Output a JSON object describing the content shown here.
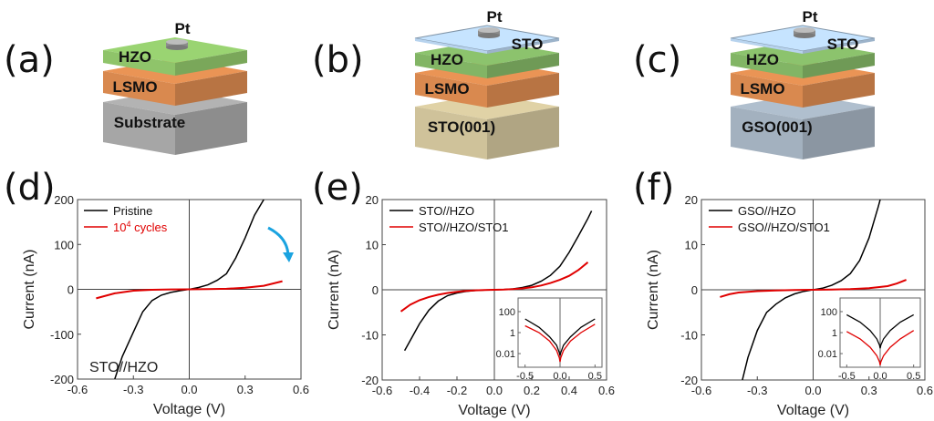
{
  "panels_top": [
    {
      "label": "(a)",
      "electrode": "Pt",
      "layers": [
        "HZO",
        "LSMO",
        "Substrate"
      ],
      "cap": null,
      "colors": {
        "cap": null,
        "hzo": "#8fc46a",
        "lsmo": "#d9894f",
        "substrate": "#a6a6a6"
      }
    },
    {
      "label": "(b)",
      "electrode": "Pt",
      "layers": [
        "HZO",
        "LSMO",
        "STO(001)"
      ],
      "cap": "STO",
      "colors": {
        "cap": "#b7d3ee",
        "hzo": "#82b565",
        "lsmo": "#d9894f",
        "substrate": "#cfc29a"
      }
    },
    {
      "label": "(c)",
      "electrode": "Pt",
      "layers": [
        "HZO",
        "LSMO",
        "GSO(001)"
      ],
      "cap": "STO",
      "colors": {
        "cap": "#b7d3ee",
        "hzo": "#82b565",
        "lsmo": "#d9894f",
        "substrate": "#a3b1bf"
      }
    }
  ],
  "chart_data": [
    {
      "panel": "(d)",
      "type": "line",
      "xlabel": "Voltage (V)",
      "ylabel": "Current (nA)",
      "xlim": [
        -0.6,
        0.6
      ],
      "ylim": [
        -200,
        200
      ],
      "xticks": [
        "-0.6",
        "-0.3",
        "0.0",
        "0.3",
        "0.6"
      ],
      "yticks": [
        "-200",
        "-100",
        "0",
        "100",
        "200"
      ],
      "legend": "top-left",
      "annotation": "STO//HZO",
      "arrow": {
        "color": "#1aa3e0",
        "meaning": "current decrease after cycling"
      },
      "series": [
        {
          "name": "Pristine",
          "color": "#000000",
          "x": [
            -0.4,
            -0.36,
            -0.3,
            -0.25,
            -0.2,
            -0.15,
            -0.1,
            -0.05,
            0.0,
            0.05,
            0.1,
            0.15,
            0.2,
            0.25,
            0.3,
            0.35,
            0.4
          ],
          "y": [
            -200,
            -150,
            -95,
            -50,
            -25,
            -13,
            -7,
            -3,
            0,
            4,
            10,
            20,
            35,
            70,
            115,
            165,
            200
          ]
        },
        {
          "name": "10^4 cycles",
          "name_display": "10",
          "name_sup": "4",
          "name_tail": " cycles",
          "color": "#e00000",
          "x": [
            -0.5,
            -0.4,
            -0.3,
            -0.2,
            -0.1,
            0.0,
            0.1,
            0.2,
            0.3,
            0.4,
            0.5
          ],
          "y": [
            -20,
            -9,
            -3,
            -1,
            -0.3,
            0,
            0.4,
            1.2,
            3.5,
            8,
            18
          ]
        }
      ]
    },
    {
      "panel": "(e)",
      "type": "line",
      "xlabel": "Voltage (V)",
      "ylabel": "Current (nA)",
      "xlim": [
        -0.6,
        0.6
      ],
      "ylim": [
        -20,
        20
      ],
      "xticks": [
        "-0.6",
        "-0.4",
        "-0.2",
        "0.0",
        "0.2",
        "0.4",
        "0.6"
      ],
      "yticks": [
        "-20",
        "-10",
        "0",
        "10",
        "20"
      ],
      "legend": "top-left",
      "series": [
        {
          "name": "STO//HZO",
          "color": "#000000",
          "x": [
            -0.48,
            -0.44,
            -0.4,
            -0.35,
            -0.3,
            -0.25,
            -0.2,
            -0.15,
            -0.1,
            -0.05,
            0.0,
            0.05,
            0.1,
            0.15,
            0.2,
            0.25,
            0.3,
            0.35,
            0.4,
            0.45,
            0.5,
            0.52
          ],
          "y": [
            -13.5,
            -10.5,
            -7.5,
            -4.5,
            -2.5,
            -1.3,
            -0.7,
            -0.35,
            -0.15,
            -0.05,
            0,
            0.05,
            0.2,
            0.5,
            1.0,
            1.9,
            3.2,
            5.2,
            8.3,
            12.0,
            15.8,
            17.5
          ]
        },
        {
          "name": "STO//HZO/STO1",
          "color": "#e00000",
          "x": [
            -0.5,
            -0.45,
            -0.4,
            -0.35,
            -0.3,
            -0.25,
            -0.2,
            -0.15,
            -0.1,
            -0.05,
            0.0,
            0.05,
            0.1,
            0.15,
            0.2,
            0.25,
            0.3,
            0.35,
            0.4,
            0.45,
            0.5
          ],
          "y": [
            -4.8,
            -3.3,
            -2.3,
            -1.6,
            -1.1,
            -0.7,
            -0.45,
            -0.25,
            -0.12,
            -0.05,
            0,
            0.05,
            0.15,
            0.3,
            0.55,
            0.95,
            1.5,
            2.2,
            3.1,
            4.4,
            6.1
          ]
        }
      ],
      "inset": {
        "type": "line",
        "yscale": "log",
        "xlim": [
          -0.6,
          0.6
        ],
        "ylim_log10": [
          -3.3,
          3.3
        ],
        "xticks": [
          "-0.5",
          "0.0",
          "0.5"
        ],
        "yticks": [
          "100",
          "1",
          "0.01"
        ],
        "series_abs_log10": [
          {
            "color": "#000000",
            "x": [
              -0.5,
              -0.3,
              -0.15,
              -0.05,
              -0.01,
              0.0,
              0.01,
              0.05,
              0.15,
              0.3,
              0.5
            ],
            "y": [
              1.3,
              0.5,
              -0.4,
              -1.2,
              -1.9,
              -2.2,
              -1.9,
              -1.2,
              -0.4,
              0.5,
              1.3
            ]
          },
          {
            "color": "#e00000",
            "x": [
              -0.5,
              -0.3,
              -0.15,
              -0.05,
              -0.01,
              0.0,
              0.01,
              0.05,
              0.15,
              0.3,
              0.5
            ],
            "y": [
              0.65,
              0.0,
              -0.8,
              -1.7,
              -2.4,
              -2.8,
              -2.4,
              -1.7,
              -0.8,
              0.0,
              0.8
            ]
          }
        ]
      }
    },
    {
      "panel": "(f)",
      "type": "line",
      "xlabel": "Voltage (V)",
      "ylabel": "Current (nA)",
      "xlim": [
        -0.6,
        0.6
      ],
      "ylim": [
        -20,
        20
      ],
      "xticks": [
        "-0.6",
        "-0.3",
        "0.0",
        "0.3",
        "0.6"
      ],
      "yticks": [
        "-20",
        "-10",
        "0",
        "10",
        "20"
      ],
      "legend": "top-left",
      "series": [
        {
          "name": "GSO//HZO",
          "color": "#000000",
          "x": [
            -0.38,
            -0.35,
            -0.3,
            -0.25,
            -0.2,
            -0.15,
            -0.1,
            -0.05,
            0.0,
            0.05,
            0.1,
            0.15,
            0.2,
            0.25,
            0.3,
            0.35,
            0.36
          ],
          "y": [
            -20,
            -15,
            -9,
            -5,
            -3.2,
            -1.8,
            -0.9,
            -0.35,
            0,
            0.35,
            1.0,
            2.0,
            3.6,
            6.5,
            11.5,
            18.5,
            20
          ]
        },
        {
          "name": "GSO//HZO/STO1",
          "color": "#e00000",
          "x": [
            -0.5,
            -0.45,
            -0.4,
            -0.3,
            -0.2,
            -0.1,
            0.0,
            0.1,
            0.2,
            0.3,
            0.4,
            0.45,
            0.5
          ],
          "y": [
            -1.6,
            -1.0,
            -0.6,
            -0.3,
            -0.15,
            -0.05,
            0,
            0.05,
            0.15,
            0.35,
            0.8,
            1.4,
            2.2
          ]
        }
      ],
      "inset": {
        "type": "line",
        "yscale": "log",
        "xlim": [
          -0.6,
          0.6
        ],
        "ylim_log10": [
          -3.3,
          3.3
        ],
        "xticks": [
          "-0.5",
          "0.0",
          "0.5"
        ],
        "yticks": [
          "100",
          "1",
          "0.01"
        ],
        "series_abs_log10": [
          {
            "color": "#000000",
            "x": [
              -0.5,
              -0.3,
              -0.15,
              -0.05,
              -0.01,
              0.0,
              0.01,
              0.05,
              0.15,
              0.3,
              0.5
            ],
            "y": [
              1.7,
              1.0,
              0.2,
              -0.6,
              -1.2,
              -1.5,
              -1.2,
              -0.6,
              0.2,
              1.0,
              1.7
            ]
          },
          {
            "color": "#e00000",
            "x": [
              -0.5,
              -0.3,
              -0.15,
              -0.05,
              -0.01,
              0.0,
              0.01,
              0.05,
              0.15,
              0.3,
              0.5
            ],
            "y": [
              0.1,
              -0.6,
              -1.4,
              -2.2,
              -2.8,
              -3.1,
              -2.8,
              -2.2,
              -1.4,
              -0.6,
              0.2
            ]
          }
        ]
      }
    }
  ],
  "bottom_labels": [
    "(d)",
    "(e)",
    "(f)"
  ]
}
